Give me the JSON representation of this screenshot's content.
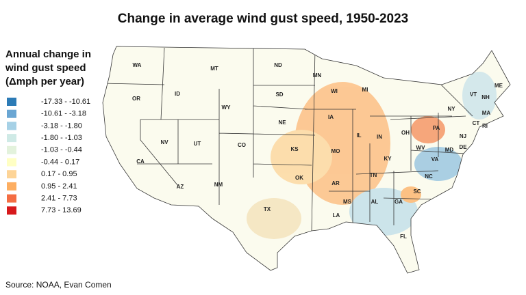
{
  "title": "Change in average wind gust speed, 1950-2023",
  "legend": {
    "title": [
      "Annual change in",
      "wind gust speed",
      "(Δmph per year)"
    ],
    "items": [
      {
        "label": "-17.33 - -10.61",
        "color": "#2c7bb6"
      },
      {
        "label": "-10.61 - -3.18",
        "color": "#6aa6d3"
      },
      {
        "label": "-3.18 - -1.80",
        "color": "#a6d1e6"
      },
      {
        "label": "-1.80 - -1.03",
        "color": "#cfeae6"
      },
      {
        "label": "-1.03 - -0.44",
        "color": "#e3f2dc"
      },
      {
        "label": "-0.44 - 0.17",
        "color": "#ffffc4"
      },
      {
        "label": "0.17 - 0.95",
        "color": "#fdd497"
      },
      {
        "label": "0.95 - 2.41",
        "color": "#fdae61"
      },
      {
        "label": "2.41 - 7.73",
        "color": "#f46d43"
      },
      {
        "label": "7.73 - 13.69",
        "color": "#d7191c"
      }
    ]
  },
  "states": [
    "WA",
    "MT",
    "ND",
    "MN",
    "ME",
    "VT",
    "NH",
    "MI",
    "WI",
    "SD",
    "OR",
    "ID",
    "WY",
    "NY",
    "MA",
    "CT",
    "RI",
    "IA",
    "NE",
    "PA",
    "OH",
    "NJ",
    "IL",
    "IN",
    "NV",
    "UT",
    "CO",
    "KS",
    "MO",
    "WV",
    "DE",
    "MD",
    "CA",
    "KY",
    "VA",
    "OK",
    "TN",
    "NC",
    "AR",
    "AZ",
    "NM",
    "SC",
    "MS",
    "AL",
    "GA",
    "TX",
    "LA",
    "FL"
  ],
  "source": "Source: NOAA, Evan Comen"
}
